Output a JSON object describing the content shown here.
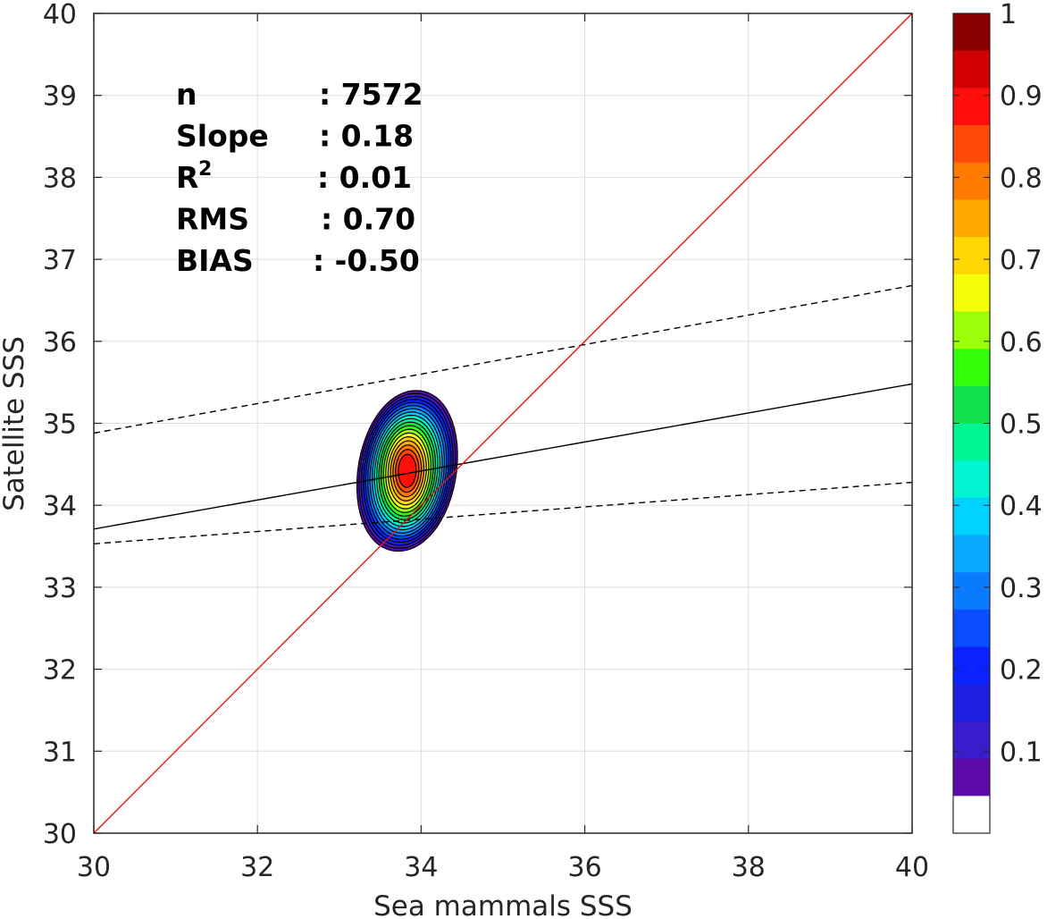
{
  "chart_data": {
    "type": "contour",
    "xlabel": "Sea mammals SSS",
    "ylabel": "Satellite SSS",
    "xlim": [
      30,
      40
    ],
    "ylim": [
      30,
      40
    ],
    "xticks": [
      "30",
      "32",
      "34",
      "36",
      "38",
      "40"
    ],
    "yticks": [
      "30",
      "31",
      "32",
      "33",
      "34",
      "35",
      "36",
      "37",
      "38",
      "39",
      "40"
    ],
    "grid": true,
    "stats": [
      {
        "label": "n",
        "value": ": 7572"
      },
      {
        "label": "Slope",
        "value": ": 0.18"
      },
      {
        "label": "R",
        "sup": "2",
        "value": ": 0.01"
      },
      {
        "label": "RMS",
        "value": ": 0.70"
      },
      {
        "label": "BIAS",
        "value": ": -0.50"
      }
    ],
    "lines": {
      "one_to_one": {
        "points": [
          [
            30,
            30
          ],
          [
            40,
            40
          ]
        ],
        "color": "#e8140f"
      },
      "fit": {
        "points": [
          [
            30,
            33.71
          ],
          [
            40,
            35.48
          ]
        ],
        "color": "#000000"
      },
      "fit_plus": {
        "points": [
          [
            30,
            34.88
          ],
          [
            40,
            36.68
          ]
        ],
        "color": "#000000",
        "dashed": true
      },
      "fit_minus": {
        "points": [
          [
            30,
            33.53
          ],
          [
            40,
            34.28
          ]
        ],
        "color": "#000000",
        "dashed": true
      }
    },
    "density": {
      "center": [
        33.83,
        34.42
      ],
      "levels": [
        0.05,
        0.1,
        0.15,
        0.2,
        0.25,
        0.3,
        0.35,
        0.4,
        0.45,
        0.5,
        0.55,
        0.6,
        0.65,
        0.7,
        0.75,
        0.8,
        0.85,
        0.9,
        0.95
      ],
      "outer_extent": {
        "x": [
          33.4,
          34.52
        ],
        "y": [
          33.35,
          35.48
        ]
      }
    },
    "colorbar": {
      "ticks": [
        "0.1",
        "0.2",
        "0.3",
        "0.4",
        "0.5",
        "0.6",
        "0.7",
        "0.8",
        "0.9",
        "1"
      ],
      "tick_values": [
        0.1,
        0.2,
        0.3,
        0.4,
        0.5,
        0.6,
        0.7,
        0.8,
        0.9,
        1
      ],
      "range": [
        0,
        1
      ],
      "colors": [
        "#ffffff",
        "#5c0aa8",
        "#3b1ccc",
        "#1d1fe0",
        "#0a22ff",
        "#0a4cff",
        "#0a7aff",
        "#0aa8ff",
        "#00d2ff",
        "#00f5d0",
        "#00f594",
        "#12e04a",
        "#33ff0a",
        "#9cff0a",
        "#f5ff0a",
        "#ffd600",
        "#ffa800",
        "#ff7a00",
        "#ff4a0a",
        "#ff0f0a",
        "#d00000",
        "#8a0000"
      ]
    }
  }
}
